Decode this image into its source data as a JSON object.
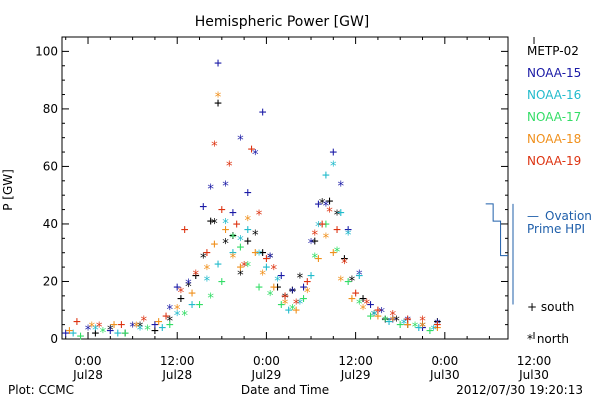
{
  "chart_data": {
    "type": "scatter",
    "title": "Hemispheric Power [GW]",
    "xlabel": "Date and Time",
    "ylabel": "P [GW]",
    "ylim": [
      0,
      105
    ],
    "xlim_hours": [
      -3.5,
      56.5
    ],
    "x_ticks": [
      {
        "hour": 0,
        "time": "0:00",
        "date": "Jul28"
      },
      {
        "hour": 12,
        "time": "12:00",
        "date": "Jul28"
      },
      {
        "hour": 24,
        "time": "0:00",
        "date": "Jul29"
      },
      {
        "hour": 36,
        "time": "12:00",
        "date": "Jul29"
      },
      {
        "hour": 48,
        "time": "0:00",
        "date": "Jul30"
      },
      {
        "hour": 60,
        "time": "12:00",
        "date": "Jul30"
      }
    ],
    "y_ticks": [
      0,
      20,
      40,
      60,
      80,
      100
    ],
    "series": [
      {
        "name": "METP-02",
        "color": "#000000",
        "points": [
          [
            1,
            2
          ],
          [
            3,
            3
          ],
          [
            5,
            2
          ],
          [
            7,
            4
          ],
          [
            9,
            3
          ],
          [
            11,
            6
          ],
          [
            12.5,
            14
          ],
          [
            13.5,
            18
          ],
          [
            14.5,
            22
          ],
          [
            15.5,
            28
          ],
          [
            16.5,
            41
          ],
          [
            17,
            40
          ],
          [
            17.5,
            82
          ],
          [
            18.5,
            33
          ],
          [
            19.5,
            36
          ],
          [
            20.5,
            22
          ],
          [
            21.5,
            34
          ],
          [
            22.5,
            36
          ],
          [
            23.5,
            30
          ],
          [
            24.5,
            28
          ],
          [
            25.5,
            18
          ],
          [
            26.5,
            14
          ],
          [
            27.5,
            17
          ],
          [
            28.5,
            21
          ],
          [
            30.5,
            34
          ],
          [
            31.5,
            47
          ],
          [
            32.5,
            48
          ],
          [
            33.5,
            43
          ],
          [
            34.5,
            28
          ],
          [
            35.5,
            20
          ],
          [
            37,
            14
          ],
          [
            38.5,
            8
          ],
          [
            40,
            7
          ],
          [
            41.5,
            6
          ],
          [
            43,
            5
          ],
          [
            45,
            4
          ],
          [
            47,
            6
          ]
        ]
      },
      {
        "name": "NOAA-15",
        "color": "#1a1aa6",
        "points": [
          [
            -3,
            2
          ],
          [
            0,
            3
          ],
          [
            3,
            3
          ],
          [
            6,
            4
          ],
          [
            9,
            5
          ],
          [
            11,
            10
          ],
          [
            12,
            18
          ],
          [
            13.5,
            19
          ],
          [
            15.5,
            46
          ],
          [
            16.5,
            52
          ],
          [
            17.5,
            96
          ],
          [
            18.5,
            53
          ],
          [
            19.5,
            44
          ],
          [
            20.5,
            69
          ],
          [
            21.5,
            51
          ],
          [
            22.5,
            64
          ],
          [
            23.5,
            79
          ],
          [
            24.5,
            28
          ],
          [
            26,
            22
          ],
          [
            27.5,
            16
          ],
          [
            29,
            18
          ],
          [
            30,
            33
          ],
          [
            31,
            47
          ],
          [
            32,
            46
          ],
          [
            33,
            65
          ],
          [
            34,
            53
          ],
          [
            35,
            38
          ],
          [
            36.5,
            22
          ],
          [
            38,
            12
          ],
          [
            39.5,
            9
          ],
          [
            41,
            7
          ],
          [
            43,
            6
          ],
          [
            45,
            4
          ],
          [
            47,
            5
          ]
        ]
      },
      {
        "name": "NOAA-16",
        "color": "#22bbcc",
        "points": [
          [
            -2,
            2
          ],
          [
            1,
            3
          ],
          [
            4,
            2
          ],
          [
            7,
            3
          ],
          [
            10,
            4
          ],
          [
            12,
            8
          ],
          [
            14,
            12
          ],
          [
            16,
            20
          ],
          [
            17.5,
            26
          ],
          [
            18.5,
            40
          ],
          [
            19.5,
            30
          ],
          [
            20.5,
            34
          ],
          [
            21.5,
            38
          ],
          [
            23,
            29
          ],
          [
            24,
            25
          ],
          [
            25.5,
            20
          ],
          [
            27,
            10
          ],
          [
            28.5,
            12
          ],
          [
            30,
            22
          ],
          [
            31,
            39
          ],
          [
            32,
            57
          ],
          [
            33,
            60
          ],
          [
            34,
            44
          ],
          [
            35,
            36
          ],
          [
            36.5,
            22
          ],
          [
            38.5,
            8
          ],
          [
            40.5,
            6
          ],
          [
            42.5,
            5
          ],
          [
            44.5,
            4
          ],
          [
            46.5,
            3
          ]
        ]
      },
      {
        "name": "NOAA-17",
        "color": "#33dd66",
        "points": [
          [
            -1,
            1
          ],
          [
            2,
            2
          ],
          [
            5,
            2
          ],
          [
            8,
            3
          ],
          [
            11,
            5
          ],
          [
            13,
            8
          ],
          [
            15,
            12
          ],
          [
            16.5,
            14
          ],
          [
            18,
            20
          ],
          [
            19.5,
            35
          ],
          [
            20.5,
            32
          ],
          [
            21.5,
            25
          ],
          [
            23,
            18
          ],
          [
            24.5,
            15
          ],
          [
            26,
            12
          ],
          [
            27.5,
            10
          ],
          [
            29,
            14
          ],
          [
            30.5,
            28
          ],
          [
            32,
            40
          ],
          [
            33.5,
            30
          ],
          [
            35,
            20
          ],
          [
            36.5,
            12
          ],
          [
            38,
            8
          ],
          [
            40,
            6
          ],
          [
            42,
            5
          ],
          [
            44,
            4
          ],
          [
            46,
            3
          ]
        ]
      },
      {
        "name": "NOAA-18",
        "color": "#f0901c",
        "points": [
          [
            -2.5,
            3
          ],
          [
            0.5,
            4
          ],
          [
            3.5,
            5
          ],
          [
            6.5,
            4
          ],
          [
            9.5,
            6
          ],
          [
            12,
            10
          ],
          [
            14,
            16
          ],
          [
            16,
            24
          ],
          [
            17,
            33
          ],
          [
            17.5,
            84
          ],
          [
            18.5,
            38
          ],
          [
            19.5,
            28
          ],
          [
            20.5,
            25
          ],
          [
            21.5,
            41
          ],
          [
            22.5,
            30
          ],
          [
            23.5,
            22
          ],
          [
            25,
            18
          ],
          [
            26.5,
            12
          ],
          [
            28,
            10
          ],
          [
            29.5,
            16
          ],
          [
            31,
            28
          ],
          [
            32,
            35
          ],
          [
            33,
            30
          ],
          [
            34,
            20
          ],
          [
            35.5,
            14
          ],
          [
            37,
            10
          ],
          [
            39,
            8
          ],
          [
            41,
            6
          ],
          [
            43,
            5
          ],
          [
            45,
            4
          ],
          [
            47,
            4
          ]
        ]
      },
      {
        "name": "NOAA-19",
        "color": "#dd3311",
        "points": [
          [
            -1.5,
            6
          ],
          [
            1.5,
            4
          ],
          [
            4.5,
            5
          ],
          [
            7.5,
            6
          ],
          [
            10.5,
            8
          ],
          [
            12.5,
            16
          ],
          [
            13,
            38
          ],
          [
            14.5,
            22
          ],
          [
            16,
            30
          ],
          [
            17,
            67
          ],
          [
            18,
            45
          ],
          [
            19,
            60
          ],
          [
            20,
            40
          ],
          [
            21,
            25
          ],
          [
            22,
            66
          ],
          [
            23,
            43
          ],
          [
            24,
            28
          ],
          [
            25,
            24
          ],
          [
            26.5,
            15
          ],
          [
            28,
            12
          ],
          [
            29.5,
            20
          ],
          [
            30.5,
            36
          ],
          [
            31.5,
            40
          ],
          [
            32.5,
            44
          ],
          [
            33.5,
            38
          ],
          [
            34.5,
            26
          ],
          [
            36,
            16
          ],
          [
            37.5,
            12
          ],
          [
            39,
            10
          ],
          [
            41,
            8
          ],
          [
            43,
            7
          ],
          [
            45,
            6
          ],
          [
            47,
            5
          ]
        ]
      }
    ],
    "ovation": {
      "name": "Ovation Prime HPI",
      "dash": "—",
      "line1": "Ovation",
      "line2": "Prime HPI",
      "color": "#1f5faa",
      "steps": [
        {
          "from": 53.5,
          "to": 54.5,
          "value": 47
        },
        {
          "from": 54.5,
          "to": 55.5,
          "value": 41
        },
        {
          "from": 55.5,
          "to": 56.5,
          "value": 29
        }
      ]
    },
    "symbols_legend": [
      {
        "symbol": "+",
        "label": "south"
      },
      {
        "symbol": "*",
        "label": "north"
      }
    ],
    "legend_placement": "right"
  },
  "footer": {
    "left": "Plot: CCMC",
    "right": "2012/07/30 19:20:13"
  }
}
